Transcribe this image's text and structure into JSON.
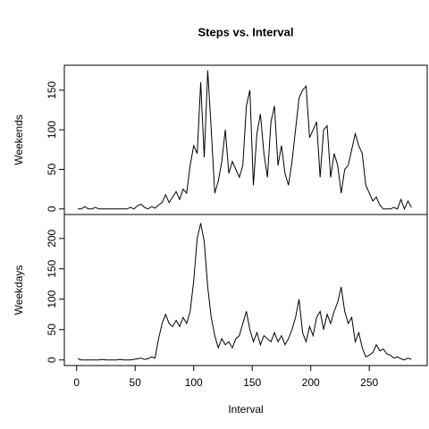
{
  "chart_data": {
    "type": "line",
    "title": "Steps vs. Interval",
    "x_label": "Interval",
    "x": [
      1,
      4,
      7,
      10,
      13,
      16,
      19,
      22,
      25,
      28,
      31,
      34,
      37,
      40,
      43,
      46,
      49,
      52,
      55,
      58,
      61,
      64,
      67,
      70,
      73,
      76,
      79,
      82,
      85,
      88,
      91,
      94,
      97,
      100,
      103,
      106,
      109,
      112,
      115,
      118,
      121,
      124,
      127,
      130,
      133,
      136,
      139,
      142,
      145,
      148,
      151,
      154,
      157,
      160,
      163,
      166,
      169,
      172,
      175,
      178,
      181,
      184,
      187,
      190,
      193,
      196,
      199,
      202,
      205,
      208,
      211,
      214,
      217,
      220,
      223,
      226,
      229,
      232,
      235,
      238,
      241,
      244,
      247,
      250,
      253,
      256,
      259,
      262,
      265,
      268,
      271,
      274,
      277,
      280,
      283,
      286
    ],
    "xlim": [
      -10.48,
      299.48
    ],
    "xticks": [
      0,
      50,
      100,
      150,
      200,
      250
    ],
    "series": [
      {
        "name": "Weekends",
        "color": "#000000",
        "ylim": [
          -7,
          181.5
        ],
        "yticks": [
          0,
          50,
          100,
          150
        ],
        "values": [
          0,
          0,
          3,
          0,
          0,
          2,
          0,
          0,
          0,
          0,
          0,
          0,
          0,
          0,
          0,
          2,
          0,
          4,
          6,
          2,
          0,
          3,
          1,
          5,
          8,
          18,
          8,
          15,
          22,
          12,
          25,
          20,
          55,
          80,
          70,
          160,
          65,
          175,
          100,
          20,
          35,
          60,
          100,
          45,
          60,
          50,
          40,
          55,
          130,
          150,
          30,
          95,
          120,
          70,
          40,
          110,
          130,
          55,
          80,
          45,
          30,
          60,
          100,
          140,
          150,
          155,
          90,
          100,
          110,
          40,
          100,
          105,
          40,
          70,
          55,
          20,
          50,
          55,
          75,
          95,
          80,
          70,
          30,
          20,
          10,
          15,
          5,
          0,
          0,
          0,
          2,
          0,
          12,
          0,
          10,
          2
        ]
      },
      {
        "name": "Weekdays",
        "color": "#000000",
        "ylim": [
          -9.2,
          239.4
        ],
        "yticks": [
          0,
          50,
          100,
          150,
          200
        ],
        "values": [
          2,
          0,
          0,
          0,
          0,
          0,
          0,
          1,
          0,
          0,
          0,
          0,
          1,
          0,
          0,
          0,
          1,
          2,
          3,
          1,
          2,
          5,
          3,
          35,
          60,
          75,
          60,
          55,
          65,
          55,
          70,
          60,
          80,
          130,
          200,
          225,
          195,
          120,
          70,
          40,
          20,
          35,
          25,
          30,
          20,
          35,
          40,
          60,
          80,
          50,
          30,
          45,
          25,
          40,
          35,
          30,
          45,
          30,
          40,
          25,
          35,
          50,
          70,
          100,
          45,
          30,
          55,
          40,
          70,
          80,
          50,
          75,
          60,
          80,
          95,
          120,
          80,
          60,
          70,
          30,
          45,
          20,
          5,
          8,
          12,
          25,
          15,
          18,
          10,
          8,
          3,
          5,
          2,
          0,
          3,
          1
        ]
      }
    ]
  }
}
